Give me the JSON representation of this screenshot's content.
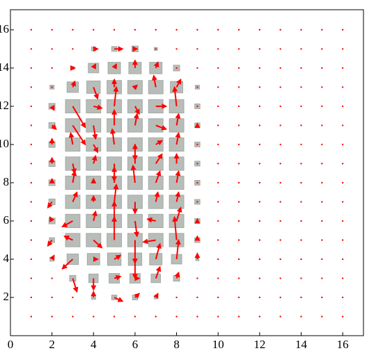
{
  "chart_data": {
    "type": "quiver",
    "x": [
      1,
      2,
      3,
      4,
      5,
      6,
      7,
      8,
      9,
      10,
      11,
      12,
      13,
      14,
      15,
      16
    ],
    "y": [
      1,
      2,
      3,
      4,
      5,
      6,
      7,
      8,
      9,
      10,
      11,
      12,
      13,
      14,
      15,
      16
    ],
    "u": [
      [
        0,
        0,
        0,
        0,
        0,
        0,
        0,
        0,
        0,
        0,
        0,
        0,
        0,
        0,
        0,
        0
      ],
      [
        0,
        0,
        0,
        0,
        0.4,
        0.2,
        0.1,
        0,
        0,
        0,
        0,
        0,
        0,
        0,
        0,
        0
      ],
      [
        0,
        0,
        0.2,
        0,
        0.3,
        0.2,
        0.2,
        0.1,
        0,
        0,
        0,
        0,
        0,
        0,
        0,
        0
      ],
      [
        0,
        0.1,
        -0.5,
        0.2,
        0.3,
        0,
        0.2,
        0.1,
        0,
        0,
        0,
        0,
        0,
        0,
        0,
        0
      ],
      [
        0,
        -0.2,
        -0.4,
        0.4,
        0,
        0,
        -0.6,
        -0.1,
        0,
        0,
        0,
        0,
        0,
        0,
        0,
        0
      ],
      [
        0,
        -0.1,
        -0.5,
        0.1,
        0,
        0.1,
        -0.4,
        0.2,
        0,
        0,
        0,
        0,
        0,
        0,
        0,
        0
      ],
      [
        0,
        -0.2,
        0.2,
        0,
        0.1,
        0,
        0.1,
        0.1,
        0,
        0,
        0,
        0,
        0,
        0,
        0,
        0
      ],
      [
        0,
        0,
        0.1,
        0,
        0,
        -0.1,
        0.2,
        0.1,
        0,
        0,
        0,
        0,
        0,
        0,
        0,
        0
      ],
      [
        0,
        0,
        0.1,
        0.1,
        0,
        0,
        0.3,
        0,
        0,
        0,
        0,
        0,
        0,
        0,
        0,
        0
      ],
      [
        0,
        0,
        -0.1,
        0.2,
        -0.1,
        0,
        0.3,
        0.1,
        0,
        0,
        0,
        0,
        0,
        0,
        0,
        0
      ],
      [
        0,
        0.2,
        0.6,
        0.1,
        0,
        0.1,
        0.5,
        0.1,
        0,
        0,
        0,
        0,
        0,
        0,
        0,
        0
      ],
      [
        0,
        0.1,
        0.6,
        0.4,
        0.1,
        0.2,
        0.5,
        -0.1,
        0,
        0,
        0,
        0,
        0,
        0,
        0,
        0
      ],
      [
        0,
        0,
        0.1,
        0.2,
        0,
        0.1,
        -0.1,
        0.2,
        0,
        0,
        0,
        0,
        0,
        0,
        0,
        0
      ],
      [
        0,
        0,
        0.1,
        0.1,
        0.1,
        0,
        0.1,
        0,
        0,
        0,
        0,
        0,
        0,
        0,
        0,
        0
      ],
      [
        0,
        0,
        0,
        0.2,
        0.4,
        0.1,
        0,
        0,
        0,
        0,
        0,
        0,
        0,
        0,
        0,
        0
      ],
      [
        0,
        0,
        0,
        0,
        0,
        0,
        0,
        0,
        0,
        0,
        0,
        0,
        0,
        0,
        0,
        0
      ]
    ],
    "v": [
      [
        0,
        0,
        0,
        0,
        0,
        0,
        0,
        0,
        0,
        0,
        0,
        0,
        0,
        0,
        0,
        0
      ],
      [
        0,
        0,
        0,
        0.3,
        -0.2,
        0.2,
        0.2,
        0,
        0,
        0,
        0,
        0,
        0,
        0,
        0,
        0
      ],
      [
        0,
        0,
        -0.7,
        -0.6,
        0.1,
        0,
        0.6,
        0.3,
        0,
        0,
        0,
        0,
        0,
        0,
        0,
        0
      ],
      [
        0,
        0.2,
        -0.5,
        0,
        0.2,
        -1,
        0.8,
        1,
        0.3,
        0,
        0,
        0,
        0,
        0,
        0,
        0
      ],
      [
        0,
        -0.3,
        0.2,
        -0.4,
        1.2,
        -1.2,
        -0.1,
        1.2,
        0.2,
        0,
        0,
        0,
        0,
        0,
        0,
        0
      ],
      [
        0,
        0.2,
        -0.3,
        0.5,
        1,
        -0.8,
        0.1,
        0.7,
        0.1,
        0,
        0,
        0,
        0,
        0,
        0,
        0
      ],
      [
        0,
        -0.3,
        0.5,
        0.3,
        0.9,
        -0.6,
        0.5,
        0.5,
        0,
        0,
        0,
        0,
        0,
        0,
        0,
        0
      ],
      [
        0,
        0.2,
        0.6,
        0.2,
        0.8,
        0.9,
        0.6,
        0.6,
        0,
        0,
        0,
        0,
        0,
        0,
        0,
        0
      ],
      [
        0,
        0.3,
        -0.5,
        0.4,
        -0.9,
        1,
        0.5,
        0.5,
        0,
        0,
        0,
        0,
        0,
        0,
        0,
        0
      ],
      [
        0,
        0.3,
        0.6,
        -0.4,
        0.8,
        -0.8,
        0.2,
        0.6,
        0,
        0,
        0,
        0,
        0,
        0,
        0,
        0
      ],
      [
        0,
        -0.2,
        -1,
        -0.7,
        0.8,
        0.6,
        -0.2,
        0.6,
        0.1,
        0,
        0,
        0,
        0,
        0,
        0,
        0
      ],
      [
        0,
        -0.2,
        -1.1,
        -0.1,
        1,
        -0.4,
        0,
        1,
        0,
        0,
        0,
        0,
        0,
        0,
        0,
        0
      ],
      [
        0,
        0,
        0.3,
        -0.6,
        0.4,
        0.1,
        0.6,
        0.4,
        0,
        0,
        0,
        0,
        0,
        0,
        0,
        0
      ],
      [
        0,
        0,
        0,
        0.2,
        0.2,
        0.4,
        0.3,
        0,
        0,
        0,
        0,
        0,
        0,
        0,
        0,
        0
      ],
      [
        0,
        0,
        0,
        0,
        0,
        0,
        0,
        0,
        0,
        0,
        0,
        0,
        0,
        0,
        0,
        0
      ],
      [
        0,
        0,
        0,
        0,
        0,
        0,
        0,
        0,
        0,
        0,
        0,
        0,
        0,
        0,
        0,
        0
      ]
    ],
    "size": [
      [
        0,
        0,
        0,
        0,
        0,
        0,
        0,
        0,
        0,
        0,
        0,
        0,
        0,
        0,
        0,
        0
      ],
      [
        0,
        0,
        0,
        0.2,
        0.25,
        0.25,
        0.15,
        0,
        0,
        0,
        0,
        0,
        0,
        0,
        0,
        0
      ],
      [
        0,
        0,
        0.3,
        0.45,
        0.5,
        0.5,
        0.45,
        0.3,
        0,
        0,
        0,
        0,
        0,
        0,
        0,
        0
      ],
      [
        0,
        0.2,
        0.55,
        0.6,
        0.65,
        0.65,
        0.6,
        0.5,
        0.15,
        0,
        0,
        0,
        0,
        0,
        0,
        0
      ],
      [
        0,
        0.25,
        0.7,
        0.7,
        0.7,
        0.7,
        0.7,
        0.7,
        0.25,
        0,
        0,
        0,
        0,
        0,
        0,
        0
      ],
      [
        0,
        0.3,
        0.7,
        0.7,
        0.7,
        0.7,
        0.7,
        0.7,
        0.25,
        0,
        0,
        0,
        0,
        0,
        0,
        0
      ],
      [
        0,
        0.3,
        0.7,
        0.7,
        0.7,
        0.7,
        0.7,
        0.7,
        0.25,
        0,
        0,
        0,
        0,
        0,
        0,
        0
      ],
      [
        0,
        0.3,
        0.7,
        0.7,
        0.7,
        0.7,
        0.7,
        0.7,
        0.25,
        0,
        0,
        0,
        0,
        0,
        0,
        0
      ],
      [
        0,
        0.3,
        0.7,
        0.7,
        0.7,
        0.7,
        0.7,
        0.7,
        0.25,
        0,
        0,
        0,
        0,
        0,
        0,
        0
      ],
      [
        0,
        0.3,
        0.7,
        0.7,
        0.7,
        0.7,
        0.7,
        0.7,
        0.25,
        0,
        0,
        0,
        0,
        0,
        0,
        0
      ],
      [
        0,
        0.3,
        0.7,
        0.7,
        0.7,
        0.7,
        0.7,
        0.7,
        0.25,
        0,
        0,
        0,
        0,
        0,
        0,
        0
      ],
      [
        0,
        0.3,
        0.7,
        0.7,
        0.7,
        0.7,
        0.7,
        0.7,
        0.25,
        0,
        0,
        0,
        0,
        0,
        0,
        0
      ],
      [
        0,
        0.2,
        0.55,
        0.65,
        0.7,
        0.7,
        0.7,
        0.6,
        0.2,
        0,
        0,
        0,
        0,
        0,
        0,
        0
      ],
      [
        0,
        0,
        0.15,
        0.5,
        0.6,
        0.6,
        0.6,
        0.3,
        0,
        0,
        0,
        0,
        0,
        0,
        0,
        0
      ],
      [
        0,
        0,
        0,
        0.2,
        0.25,
        0.3,
        0.15,
        0,
        0,
        0,
        0,
        0,
        0,
        0,
        0,
        0
      ],
      [
        0,
        0,
        0,
        0,
        0,
        0,
        0,
        0,
        0,
        0,
        0,
        0,
        0,
        0,
        0,
        0
      ]
    ],
    "arrow_color": "#ff0000",
    "square_color": "#b9bdb9",
    "xlim": [
      0,
      17
    ],
    "ylim": [
      0,
      17.05
    ],
    "xticks": [
      0,
      2,
      4,
      6,
      8,
      10,
      12,
      14,
      16
    ],
    "yticks": [
      2,
      4,
      6,
      8,
      10,
      12,
      14,
      16
    ]
  }
}
